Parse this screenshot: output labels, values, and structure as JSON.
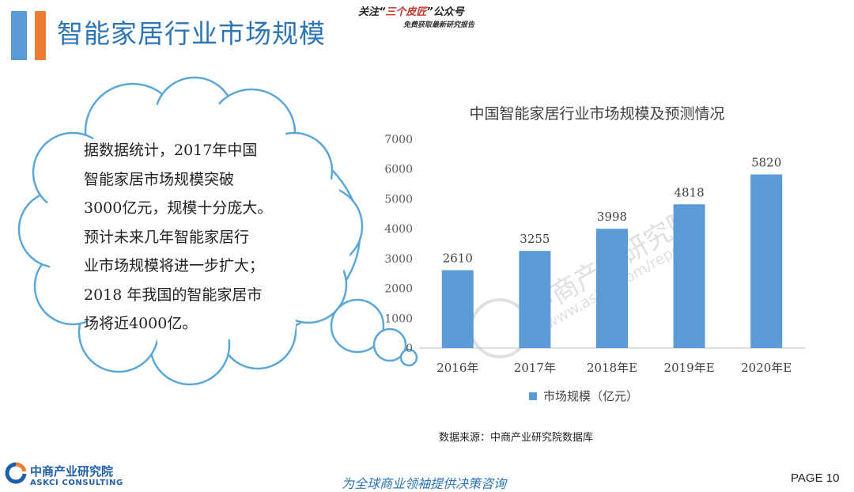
{
  "header": {
    "title": "智能家居行业市场规模",
    "promo_prefix": "关注“",
    "promo_highlight": "三个皮匠",
    "promo_suffix": "”公众号",
    "promo_sub": "免费获取最新研究报告"
  },
  "bubble": {
    "lines": [
      "据数据统计，2017年中国",
      "智能家居市场规模突破",
      "3000亿元，规模十分庞大。",
      "预计未来几年智能家居行",
      "业市场规模将进一步扩大；",
      "2018 年我国的智能家居市",
      "场将近4000亿。"
    ]
  },
  "colors": {
    "accent_blue": "#5b9bd5",
    "accent_orange": "#ed7d31",
    "title_blue": "#2e75b6"
  },
  "chart_data": {
    "type": "bar",
    "title": "中国智能家居行业市场规模及预测情况",
    "categories": [
      "2016年",
      "2017年",
      "2018年E",
      "2019年E",
      "2020年E"
    ],
    "series": [
      {
        "name": "市场规模（亿元）",
        "values": [
          2610,
          3255,
          3998,
          4818,
          5820
        ],
        "color": "#5b9bd5"
      }
    ],
    "ylim": [
      0,
      7000
    ],
    "yticks": [
      0,
      1000,
      2000,
      3000,
      4000,
      5000,
      6000,
      7000
    ],
    "grid": false,
    "legend": "bottom"
  },
  "watermark": {
    "cn": "中商产业研究院",
    "url": "www.askci.com/reports/"
  },
  "source": "数据来源：中商产业研究院数据库",
  "footer": {
    "logo_cn": "中商产业研究院",
    "logo_en": "ASKCI CONSULTING",
    "slogan": "为全球商业领袖提供决策咨询",
    "page_label": "PAGE  10"
  }
}
